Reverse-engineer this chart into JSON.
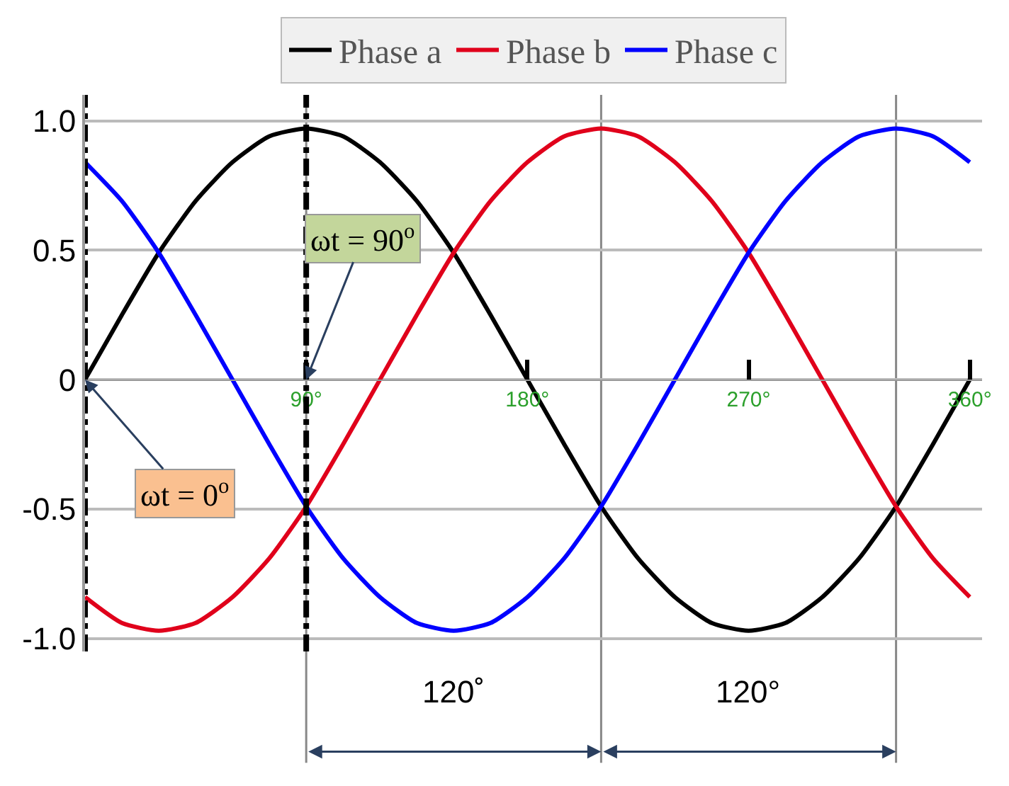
{
  "chart_data": {
    "type": "line",
    "x": [
      0,
      15,
      30,
      45,
      60,
      75,
      90,
      105,
      120,
      135,
      150,
      165,
      180,
      195,
      210,
      225,
      240,
      255,
      270,
      285,
      300,
      315,
      330,
      345,
      360
    ],
    "series": [
      {
        "name": "Phase a",
        "color": "#000000",
        "values": [
          0,
          0.25,
          0.49,
          0.69,
          0.84,
          0.94,
          0.97,
          0.94,
          0.84,
          0.69,
          0.49,
          0.25,
          0,
          -0.25,
          -0.49,
          -0.69,
          -0.84,
          -0.94,
          -0.97,
          -0.94,
          -0.84,
          -0.69,
          -0.49,
          -0.25,
          0
        ]
      },
      {
        "name": "Phase b",
        "color": "#e0001b",
        "values": [
          -0.84,
          -0.94,
          -0.97,
          -0.94,
          -0.84,
          -0.69,
          -0.49,
          -0.25,
          0,
          0.25,
          0.49,
          0.69,
          0.84,
          0.94,
          0.97,
          0.94,
          0.84,
          0.69,
          0.49,
          0.25,
          0,
          -0.25,
          -0.49,
          -0.69,
          -0.84
        ]
      },
      {
        "name": "Phase c",
        "color": "#0000ff",
        "values": [
          0.84,
          0.69,
          0.49,
          0.25,
          0,
          -0.25,
          -0.49,
          -0.69,
          -0.84,
          -0.94,
          -0.97,
          -0.94,
          -0.84,
          -0.69,
          -0.49,
          -0.25,
          0,
          0.25,
          0.49,
          0.69,
          0.84,
          0.94,
          0.97,
          0.94,
          0.84
        ]
      }
    ],
    "xlim": [
      0,
      365
    ],
    "xticks": [
      {
        "value": 90,
        "label": "90°"
      },
      {
        "value": 180,
        "label": "180°"
      },
      {
        "value": 270,
        "label": "270°"
      },
      {
        "value": 360,
        "label": "360°"
      }
    ],
    "ylim": [
      -1.05,
      1.1
    ],
    "yticks": [
      {
        "value": -1,
        "label": "-1.0"
      },
      -0.5,
      0,
      0.5,
      {
        "value": 1,
        "label": "1.0"
      }
    ],
    "grid": "y",
    "legend": "top",
    "ref_lines": [
      {
        "axis": "x",
        "value": 90,
        "color": "#888888",
        "line_style": "solid"
      },
      {
        "axis": "x",
        "value": 210,
        "color": "#888888",
        "line_style": "solid"
      },
      {
        "axis": "x",
        "value": 330,
        "color": "#888888",
        "line_style": "solid"
      },
      {
        "axis": "x",
        "value": 0,
        "color": "#000000",
        "line_style": "dashed"
      },
      {
        "axis": "x",
        "value": 90,
        "color": "#000000",
        "line_style": "dashed"
      }
    ],
    "annotations": [
      "120˚",
      "120°",
      {
        "text": "ωt = 90$^{o}$",
        "x": 90,
        "y": 0
      },
      {
        "text": "ωt = 0$^{o}$",
        "x": 0,
        "y": 0
      }
    ]
  }
}
